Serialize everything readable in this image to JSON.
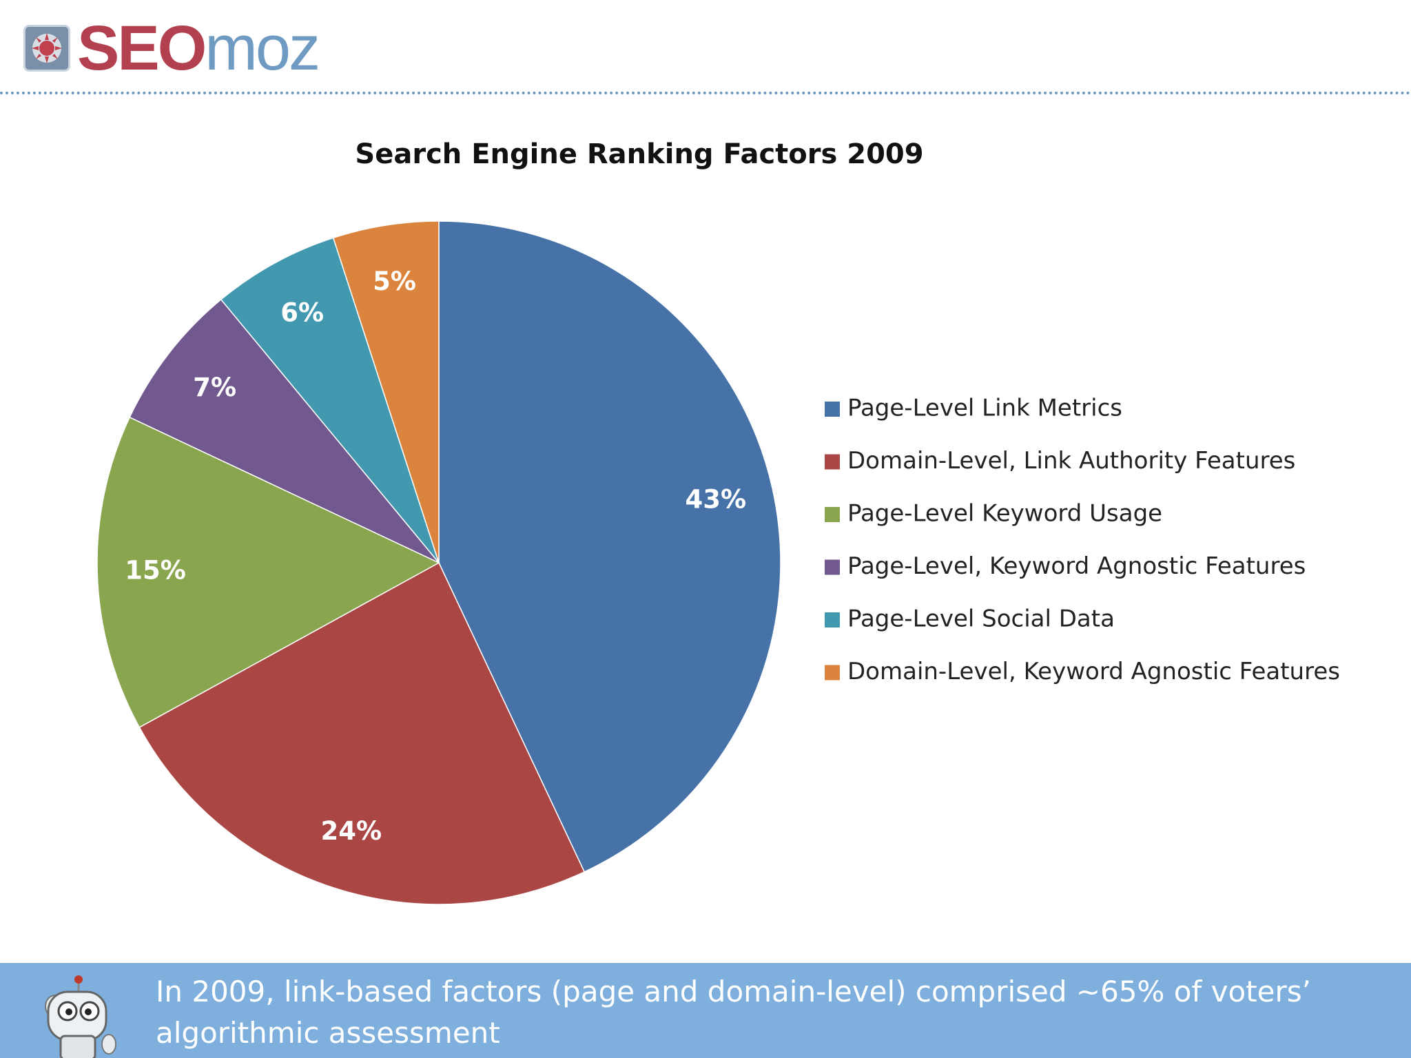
{
  "logo": {
    "part1": "SEO",
    "part2": "moz",
    "brand_red": "#b3404f",
    "brand_blue": "#6f9bc2"
  },
  "chart_data": {
    "type": "pie",
    "title": "Search Engine Ranking Factors 2009",
    "legend_position": "right",
    "slices": [
      {
        "label": "Page-Level Link Metrics",
        "value": 43,
        "display": "43%",
        "color": "#4672a8"
      },
      {
        "label": "Domain-Level, Link Authority Features",
        "value": 24,
        "display": "24%",
        "color": "#aa4644"
      },
      {
        "label": "Page-Level Keyword Usage",
        "value": 15,
        "display": "15%",
        "color": "#89a54e"
      },
      {
        "label": "Page-Level, Keyword Agnostic Features",
        "value": 7,
        "display": "7%",
        "color": "#71588f"
      },
      {
        "label": "Page-Level Social Data",
        "value": 6,
        "display": "6%",
        "color": "#4298af"
      },
      {
        "label": "Domain-Level, Keyword Agnostic Features",
        "value": 5,
        "display": "5%",
        "color": "#db843d"
      }
    ]
  },
  "footer": {
    "caption": "In 2009, link-based factors (page and domain-level) comprised ~65% of voters’ algorithmic assessment",
    "background": "#7fb0dd",
    "mascot_icon": "robot-mascot-icon"
  }
}
